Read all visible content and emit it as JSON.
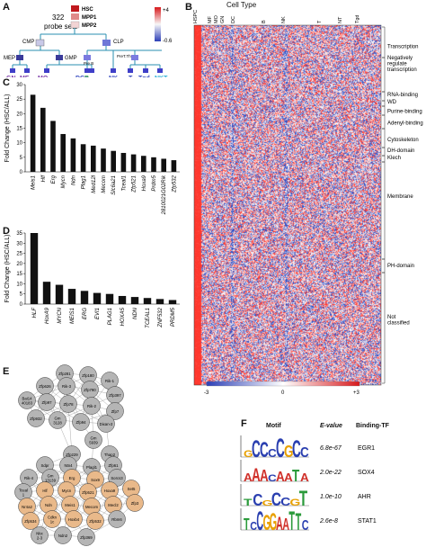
{
  "panels": {
    "a": "A",
    "b": "B",
    "c": "C",
    "d": "D",
    "e": "E",
    "f": "F"
  },
  "panel_a": {
    "probe_count": "322",
    "probe_label": "probe sets",
    "legend": [
      "HSC",
      "MPP1",
      "MPP2"
    ],
    "legend_colors": [
      "#c0181d",
      "#e08a8a",
      "#f2d4d4"
    ],
    "colorbar_top": "+4",
    "colorbar_bottom": "-0.6",
    "internal_nodes": [
      "CMP",
      "CLP",
      "MEP",
      "GMP",
      "Pre B",
      "PreT.Th"
    ],
    "leaves": [
      "GN",
      "MF",
      "MO",
      "DCs",
      "B",
      "NK",
      "T",
      "Tgd",
      "NKT"
    ],
    "leaf_colors": [
      "#7b3aa8",
      "#7b3aa8",
      "#7b3aa8",
      "#3a4ec0",
      "#2fa34a",
      "#3a4ec0",
      "#3a4ec0",
      "#3a4ec0",
      "#2fb0d8"
    ]
  },
  "panel_b": {
    "title": "Cell Type",
    "top_labels": [
      "HSPC",
      "MF",
      "MO",
      "GN",
      "DC",
      "B",
      "NK",
      "T",
      "NT",
      "Tgd"
    ],
    "categories": [
      "Transcription",
      "Negatively regulate transcription",
      "RNA-binding",
      "WD",
      "Purine-binding",
      "Adenyl-binding",
      "Cytoskeleton",
      "DH-domain",
      "Klech",
      "Membrane",
      "PH-domain",
      "Not classified"
    ],
    "scale_min": "-3",
    "scale_mid": "0",
    "scale_max": "+3"
  },
  "chart_data": [
    {
      "type": "bar",
      "panel": "C",
      "ylabel": "Fold Change (HSC/ALL)",
      "ylim": [
        0,
        30
      ],
      "yticks": [
        "0",
        "5",
        "10",
        "15",
        "20",
        "25",
        "30"
      ],
      "categories": [
        "Meis1",
        "Hlf",
        "Erg",
        "Mycn",
        "Ndn",
        "Plag1",
        "Med12l",
        "Mecom",
        "Slc6a21",
        "Tceal1",
        "Zfp521",
        "Hoxa9",
        "Prdm5",
        "2810021G02Rik",
        "Zfp532"
      ],
      "values": [
        26.5,
        22,
        17.5,
        13,
        11.5,
        9.5,
        9,
        8,
        7.2,
        6.5,
        6,
        5.5,
        5,
        4.5,
        4
      ]
    },
    {
      "type": "bar",
      "panel": "D",
      "ylabel": "Fold Change (HSC/ALL)",
      "ylim": [
        0,
        35
      ],
      "yticks": [
        "0",
        "5",
        "10",
        "15",
        "20",
        "25",
        "30",
        "35"
      ],
      "categories": [
        "HLF",
        "HoxA9",
        "MYCN",
        "MEIS1",
        "ERG",
        "EVI1",
        "PLAG1",
        "HOXA5",
        "NDN",
        "TCEAL1",
        "ZNF532",
        "PRDM5"
      ],
      "values": [
        36,
        11,
        9.5,
        7.5,
        6.5,
        5.5,
        5,
        4,
        3.5,
        3,
        2.5,
        2
      ]
    }
  ],
  "panel_e": {
    "cluster1_nodes": [
      "Zfp281",
      "Zfp180",
      "Rik-1",
      "Zfp626",
      "Rik-3",
      "Zfp790",
      "Zfp397",
      "Bai14 40183",
      "Zfp97",
      "Zfp78",
      "Rik-2",
      "Zfp7",
      "Zfp932",
      "Gm 3128",
      "Zfp94",
      "Dixan-2"
    ],
    "bridge_nodes": [
      "Zfp229",
      "Gm 5939",
      "Thap2"
    ],
    "cluster2_nodes": [
      "Sdpr",
      "Ntn4",
      "Plagl1",
      "Zfp61",
      "Rik-4",
      "Gm 13139",
      "Erg",
      "Sox9",
      "Sorcs3",
      "Tceal 1",
      "Hlf",
      "Mycn",
      "Zfp521",
      "Hoxa9",
      "Set5",
      "Nr4a2",
      "Ndn",
      "Meis1",
      "Mecom",
      "Mecl2",
      "Zfp3",
      "Zfp534",
      "Cdkn 1c",
      "Hoxb4",
      "Zfp532",
      "Rbm6",
      "Nkx 2-3",
      "Ndn2",
      "Zfp369"
    ],
    "highlight_color": "#e9b98a",
    "node_color": "#b5b5b5"
  },
  "panel_f": {
    "headers": [
      "Motif",
      "E-value",
      "Binding-TF"
    ],
    "rows": [
      {
        "evalue": "6.8e-67",
        "tf": "EGR1"
      },
      {
        "evalue": "2.0e-22",
        "tf": "SOX4"
      },
      {
        "evalue": "1.0e-10",
        "tf": "AHR"
      },
      {
        "evalue": "2.6e-8",
        "tf": "STAT1"
      }
    ]
  }
}
